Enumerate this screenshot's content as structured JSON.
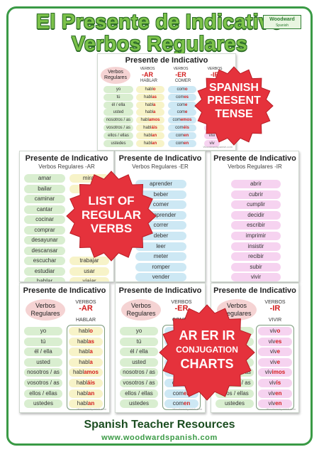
{
  "title": {
    "line1": "El Presente de Indicativo",
    "line2": "Verbos Regulares"
  },
  "logo": {
    "name": "Woodward",
    "sub": "Spanish"
  },
  "badges": {
    "present": [
      "SPANISH",
      "PRESENT",
      "TENSE"
    ],
    "list": [
      "LIST OF",
      "REGULAR",
      "VERBS"
    ],
    "charts": [
      "AR ER IR",
      "CONJUGATION",
      "CHARTS"
    ]
  },
  "common": {
    "header": "Presente de Indicativo",
    "regulares": [
      "Verbos",
      "Regulares"
    ],
    "verbos_label": "VERBOS",
    "pronouns": [
      "yo",
      "tú",
      "él / ella",
      "usted",
      "nosotros / as",
      "vosotros / as",
      "ellos / ellas",
      "ustedes"
    ],
    "small": "Woodwardspanish.com"
  },
  "top_chart": {
    "endings": [
      "-AR",
      "-ER",
      "-IR"
    ],
    "verbs": [
      "HABLAR",
      "COMER"
    ],
    "ar_stems": [
      "habl",
      "habl",
      "habl",
      "habl",
      "habl",
      "habl",
      "habl",
      "habl"
    ],
    "ar_endings": [
      "o",
      "as",
      "a",
      "a",
      "amos",
      "áis",
      "an",
      "an"
    ],
    "er_stems": [
      "com",
      "com",
      "com",
      "com",
      "com",
      "com",
      "com",
      "com"
    ],
    "er_endings": [
      "o",
      "es",
      "e",
      "e",
      "emos",
      "éis",
      "en",
      "en"
    ],
    "ir_partial": [
      "vivi",
      "vivi",
      "viv"
    ]
  },
  "list_ar": {
    "subtitle": "Verbos Regulares -AR",
    "col1": [
      "amar",
      "bailar",
      "caminar",
      "cantar",
      "cocinar",
      "comprar",
      "desayunar",
      "descansar",
      "escuchar",
      "estudiar",
      "hablar"
    ],
    "col2": [
      "mirar",
      "nadar",
      "",
      "",
      "",
      "",
      "",
      "",
      "trabajar",
      "usar",
      "viajar"
    ]
  },
  "list_er": {
    "subtitle": "Verbos Regulares -ER",
    "verbs": [
      "aprender",
      "beber",
      "comer",
      "comprender",
      "correr",
      "deber",
      "leer",
      "meter",
      "romper",
      "vender"
    ]
  },
  "list_ir": {
    "subtitle": "Verbos Regulares -IR",
    "verbs": [
      "abrir",
      "cubrir",
      "cumplir",
      "decidir",
      "escribir",
      "imprimir",
      "insistir",
      "recibir",
      "subir",
      "vivir"
    ]
  },
  "conj": [
    {
      "ending": "-AR",
      "verb": "HABLAR",
      "stem": "habl",
      "endings": [
        "o",
        "as",
        "a",
        "a",
        "amos",
        "áis",
        "an",
        "an"
      ]
    },
    {
      "ending": "-ER",
      "verb": "COMER",
      "stem": "com",
      "endings": [
        "o",
        "es",
        "e",
        "e",
        "emos",
        "éis",
        "en",
        "en"
      ]
    },
    {
      "ending": "-IR",
      "verb": "VIVIR",
      "stem": "viv",
      "endings": [
        "o",
        "es",
        "e",
        "e",
        "imos",
        "ís",
        "en",
        "en"
      ]
    }
  ],
  "footer": {
    "line1": "Spanish Teacher Resources",
    "line2": "www.woodwardspanish.com"
  },
  "colors": {
    "frame": "#3a9a45",
    "title": "#7cc24a",
    "badge": "#e5323c",
    "ending": "#d21d1d"
  }
}
